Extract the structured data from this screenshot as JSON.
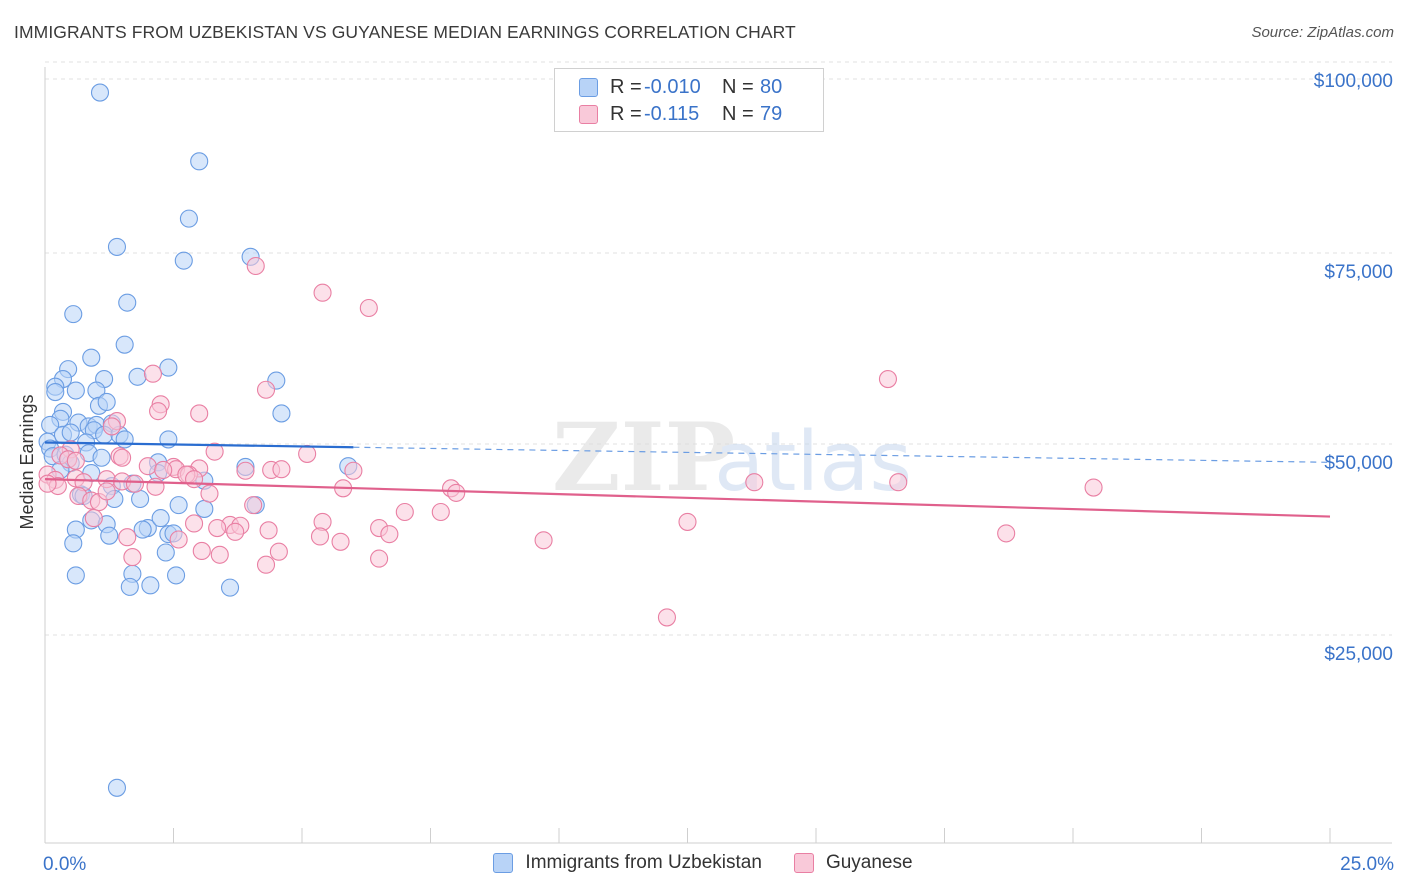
{
  "header": {
    "title": "IMMIGRANTS FROM UZBEKISTAN VS GUYANESE MEDIAN EARNINGS CORRELATION CHART",
    "source": "Source: ZipAtlas.com"
  },
  "watermark": {
    "zip": "ZIP",
    "atlas": "atlas"
  },
  "legend": {
    "rows": [
      {
        "r_label": "R =",
        "r_value": "-0.010",
        "n_label": "N =",
        "n_value": "80",
        "color": "#6b9de3",
        "fill": "#b8d3f7"
      },
      {
        "r_label": "R =",
        "r_value": "-0.115",
        "n_label": "N =",
        "n_value": "79",
        "color": "#e97fa3",
        "fill": "#f9c9d9"
      }
    ]
  },
  "bottom_legend": [
    "Immigrants from Uzbekistan",
    "Guyanese"
  ],
  "chart_data": {
    "type": "scatter",
    "title": "IMMIGRANTS FROM UZBEKISTAN VS GUYANESE MEDIAN EARNINGS CORRELATION CHART",
    "xlabel": "",
    "ylabel": "Median Earnings",
    "xlim": [
      0,
      25
    ],
    "ylim": [
      0,
      100000
    ],
    "x_tick_labels": [
      "0.0%",
      "25.0%"
    ],
    "y_ticks": [
      25000,
      50000,
      75000,
      100000
    ],
    "y_tick_labels": [
      "$25,000",
      "$50,000",
      "$75,000",
      "$100,000"
    ],
    "series": [
      {
        "name": "Immigrants from Uzbekistan",
        "color": "#6b9de3",
        "fill": "#b8d3f7",
        "trend": {
          "x0": 0.0,
          "y0": 50200,
          "x_solid_end": 6.0,
          "x1": 25.0,
          "y1": 47600
        },
        "points": [
          [
            1.07,
            96000
          ],
          [
            3.0,
            87000
          ],
          [
            2.8,
            79500
          ],
          [
            1.4,
            75800
          ],
          [
            2.7,
            74000
          ],
          [
            4.0,
            74500
          ],
          [
            1.6,
            68500
          ],
          [
            0.55,
            67000
          ],
          [
            1.55,
            63000
          ],
          [
            0.9,
            61300
          ],
          [
            2.4,
            60000
          ],
          [
            0.45,
            59800
          ],
          [
            0.35,
            58500
          ],
          [
            1.15,
            58500
          ],
          [
            1.8,
            58800
          ],
          [
            4.5,
            58300
          ],
          [
            0.2,
            57500
          ],
          [
            0.2,
            56800
          ],
          [
            0.6,
            57000
          ],
          [
            1.0,
            57000
          ],
          [
            1.05,
            55000
          ],
          [
            1.2,
            55500
          ],
          [
            0.35,
            54200
          ],
          [
            4.6,
            54000
          ],
          [
            0.3,
            53300
          ],
          [
            0.65,
            52800
          ],
          [
            0.85,
            52300
          ],
          [
            1.0,
            52500
          ],
          [
            1.3,
            52700
          ],
          [
            0.1,
            52500
          ],
          [
            0.35,
            51200
          ],
          [
            0.5,
            51500
          ],
          [
            0.95,
            51800
          ],
          [
            1.15,
            51200
          ],
          [
            1.45,
            51200
          ],
          [
            0.8,
            50200
          ],
          [
            0.05,
            50300
          ],
          [
            0.1,
            49400
          ],
          [
            0.15,
            48400
          ],
          [
            0.4,
            48600
          ],
          [
            0.45,
            48000
          ],
          [
            0.5,
            47500
          ],
          [
            0.85,
            48800
          ],
          [
            1.1,
            48200
          ],
          [
            2.4,
            50600
          ],
          [
            2.2,
            47600
          ],
          [
            3.9,
            47000
          ],
          [
            5.9,
            47100
          ],
          [
            2.2,
            46200
          ],
          [
            3.1,
            45200
          ],
          [
            0.7,
            43400
          ],
          [
            0.75,
            43200
          ],
          [
            1.3,
            44500
          ],
          [
            1.7,
            44800
          ],
          [
            1.35,
            42800
          ],
          [
            1.85,
            42800
          ],
          [
            2.6,
            42000
          ],
          [
            3.1,
            41500
          ],
          [
            4.1,
            42000
          ],
          [
            0.9,
            40000
          ],
          [
            1.2,
            39500
          ],
          [
            2.0,
            39000
          ],
          [
            2.25,
            40300
          ],
          [
            1.9,
            38800
          ],
          [
            0.6,
            38800
          ],
          [
            1.25,
            38000
          ],
          [
            2.4,
            38200
          ],
          [
            2.5,
            38300
          ],
          [
            0.55,
            37000
          ],
          [
            2.35,
            35800
          ],
          [
            0.6,
            32800
          ],
          [
            1.7,
            33000
          ],
          [
            2.55,
            32800
          ],
          [
            1.65,
            31300
          ],
          [
            2.05,
            31500
          ],
          [
            3.6,
            31200
          ],
          [
            1.4,
            5000
          ],
          [
            0.3,
            46600
          ],
          [
            0.9,
            46200
          ],
          [
            1.55,
            50600
          ]
        ]
      },
      {
        "name": "Guyanese",
        "color": "#e97fa3",
        "fill": "#f9c9d9",
        "trend": {
          "x0": 0.0,
          "y0": 45400,
          "x_solid_end": 25.0,
          "x1": 25.0,
          "y1": 40500
        },
        "points": [
          [
            4.1,
            73300
          ],
          [
            5.4,
            69800
          ],
          [
            6.3,
            67800
          ],
          [
            16.4,
            58500
          ],
          [
            2.1,
            59200
          ],
          [
            4.3,
            57100
          ],
          [
            2.25,
            55200
          ],
          [
            2.2,
            54300
          ],
          [
            3.0,
            54000
          ],
          [
            1.4,
            53000
          ],
          [
            1.3,
            52300
          ],
          [
            3.3,
            49000
          ],
          [
            5.1,
            48700
          ],
          [
            0.5,
            49300
          ],
          [
            0.3,
            48500
          ],
          [
            1.45,
            48400
          ],
          [
            1.5,
            48200
          ],
          [
            0.45,
            48000
          ],
          [
            0.6,
            47800
          ],
          [
            2.0,
            47100
          ],
          [
            2.5,
            47000
          ],
          [
            2.55,
            46700
          ],
          [
            3.0,
            46800
          ],
          [
            3.9,
            46500
          ],
          [
            4.4,
            46600
          ],
          [
            4.6,
            46700
          ],
          [
            6.0,
            46500
          ],
          [
            2.8,
            46000
          ],
          [
            2.75,
            46000
          ],
          [
            2.3,
            46600
          ],
          [
            0.05,
            46000
          ],
          [
            0.6,
            45500
          ],
          [
            1.2,
            45400
          ],
          [
            1.5,
            45100
          ],
          [
            1.75,
            44800
          ],
          [
            2.15,
            44400
          ],
          [
            0.2,
            45300
          ],
          [
            0.25,
            44500
          ],
          [
            0.05,
            44800
          ],
          [
            0.75,
            45000
          ],
          [
            2.9,
            45400
          ],
          [
            7.9,
            44200
          ],
          [
            8.0,
            43600
          ],
          [
            5.8,
            44200
          ],
          [
            13.8,
            45000
          ],
          [
            16.6,
            45000
          ],
          [
            20.4,
            44300
          ],
          [
            0.65,
            43200
          ],
          [
            0.9,
            42600
          ],
          [
            1.05,
            42400
          ],
          [
            1.2,
            43800
          ],
          [
            0.95,
            40300
          ],
          [
            3.2,
            43500
          ],
          [
            4.05,
            42000
          ],
          [
            7.0,
            41100
          ],
          [
            7.7,
            41100
          ],
          [
            2.9,
            39600
          ],
          [
            3.6,
            39400
          ],
          [
            3.8,
            39300
          ],
          [
            5.4,
            39800
          ],
          [
            12.5,
            39800
          ],
          [
            3.35,
            39000
          ],
          [
            3.7,
            38500
          ],
          [
            4.35,
            38700
          ],
          [
            5.35,
            37900
          ],
          [
            5.75,
            37200
          ],
          [
            6.5,
            39000
          ],
          [
            6.7,
            38200
          ],
          [
            9.7,
            37400
          ],
          [
            18.7,
            38300
          ],
          [
            1.6,
            37800
          ],
          [
            1.7,
            35200
          ],
          [
            2.6,
            37500
          ],
          [
            3.05,
            36000
          ],
          [
            3.4,
            35500
          ],
          [
            4.55,
            35900
          ],
          [
            6.5,
            35000
          ],
          [
            4.3,
            34200
          ],
          [
            12.1,
            27300
          ]
        ]
      }
    ]
  }
}
